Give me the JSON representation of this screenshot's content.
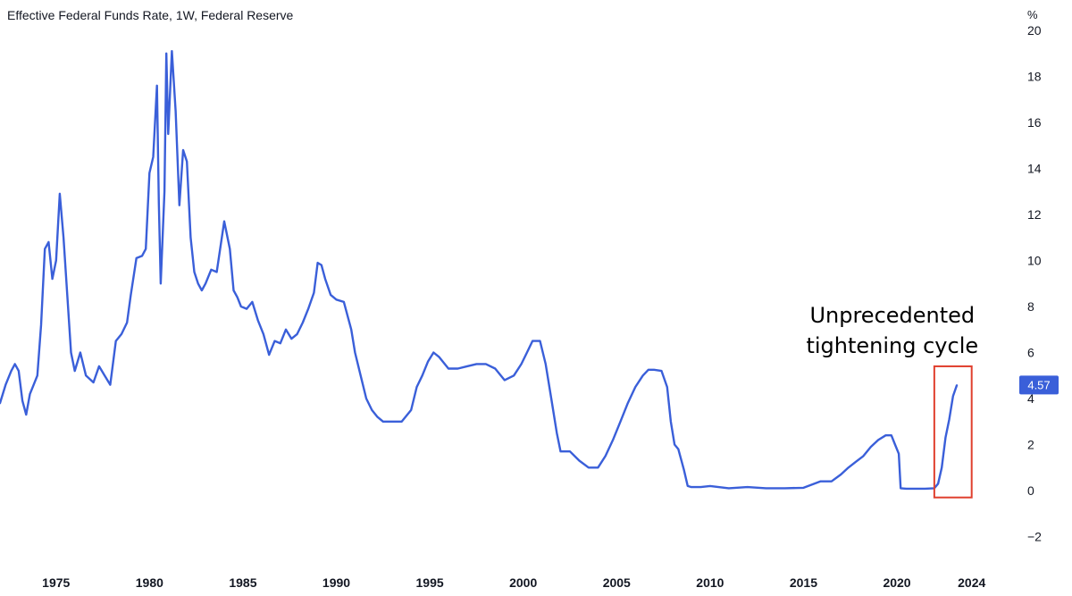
{
  "chart_data": {
    "type": "line",
    "title": "Effective Federal Funds Rate, 1W, Federal Reserve",
    "unit_label": "%",
    "xlim": [
      1972.0,
      2026.5
    ],
    "ylim": [
      -3,
      20
    ],
    "y_ticks": [
      20,
      18,
      16,
      14,
      12,
      10,
      8,
      6,
      4,
      2,
      0,
      -2
    ],
    "x_ticks": [
      {
        "value": 1975,
        "label": "1975"
      },
      {
        "value": 1980,
        "label": "1980"
      },
      {
        "value": 1985,
        "label": "1985"
      },
      {
        "value": 1990,
        "label": "1990"
      },
      {
        "value": 1995,
        "label": "1995"
      },
      {
        "value": 2000,
        "label": "2000"
      },
      {
        "value": 2005,
        "label": "2005"
      },
      {
        "value": 2010,
        "label": "2010"
      },
      {
        "value": 2015,
        "label": "2015"
      },
      {
        "value": 2020,
        "label": "2020"
      },
      {
        "value": 2024,
        "label": "2024"
      }
    ],
    "grid": false,
    "line_color": "#3a5fd9",
    "series": [
      {
        "x": [
          1972.0,
          1972.3,
          1972.6,
          1972.8,
          1973.0,
          1973.2,
          1973.4,
          1973.6,
          1973.8,
          1974.0,
          1974.2,
          1974.4,
          1974.6,
          1974.8,
          1975.0,
          1975.2,
          1975.4,
          1975.6,
          1975.8,
          1976.0,
          1976.3,
          1976.6,
          1977.0,
          1977.3,
          1977.6,
          1977.9,
          1978.2,
          1978.5,
          1978.8,
          1979.0,
          1979.3,
          1979.6,
          1979.8,
          1980.0,
          1980.2,
          1980.4,
          1980.5,
          1980.6,
          1980.8,
          1980.9,
          1981.0,
          1981.2,
          1981.4,
          1981.6,
          1981.8,
          1982.0,
          1982.2,
          1982.4,
          1982.6,
          1982.8,
          1983.0,
          1983.3,
          1983.6,
          1984.0,
          1984.3,
          1984.5,
          1984.7,
          1984.9,
          1985.2,
          1985.5,
          1985.8,
          1986.1,
          1986.4,
          1986.7,
          1987.0,
          1987.3,
          1987.6,
          1987.9,
          1988.2,
          1988.5,
          1988.8,
          1989.0,
          1989.2,
          1989.4,
          1989.7,
          1990.0,
          1990.4,
          1990.8,
          1991.0,
          1991.3,
          1991.6,
          1991.9,
          1992.2,
          1992.5,
          1993.0,
          1993.5,
          1994.0,
          1994.3,
          1994.6,
          1994.9,
          1995.2,
          1995.5,
          1996.0,
          1996.5,
          1997.0,
          1997.5,
          1998.0,
          1998.5,
          1998.8,
          1999.0,
          1999.5,
          1999.9,
          2000.2,
          2000.5,
          2000.9,
          2001.2,
          2001.5,
          2001.8,
          2002.0,
          2002.5,
          2003.0,
          2003.5,
          2004.0,
          2004.4,
          2004.8,
          2005.2,
          2005.6,
          2006.0,
          2006.4,
          2006.7,
          2007.0,
          2007.4,
          2007.7,
          2007.9,
          2008.1,
          2008.3,
          2008.6,
          2008.8,
          2009.0,
          2009.5,
          2010.0,
          2011.0,
          2012.0,
          2013.0,
          2014.0,
          2015.0,
          2015.9,
          2016.5,
          2017.0,
          2017.4,
          2017.8,
          2018.2,
          2018.6,
          2019.0,
          2019.4,
          2019.7,
          2019.9,
          2020.1,
          2020.2,
          2020.5,
          2021.0,
          2021.5,
          2022.0,
          2022.2,
          2022.4,
          2022.6,
          2022.8,
          2023.0,
          2023.2
        ],
        "y": [
          3.8,
          4.6,
          5.2,
          5.5,
          5.2,
          3.9,
          3.3,
          4.2,
          4.6,
          5.0,
          7.2,
          10.5,
          10.8,
          9.2,
          10.0,
          12.9,
          11.0,
          8.5,
          6.0,
          5.2,
          6.0,
          5.0,
          4.7,
          5.4,
          5.0,
          4.6,
          6.5,
          6.8,
          7.3,
          8.5,
          10.1,
          10.2,
          10.5,
          13.8,
          14.5,
          17.6,
          12.5,
          9.0,
          13.0,
          19.0,
          15.5,
          19.1,
          16.5,
          12.4,
          14.8,
          14.3,
          11.0,
          9.5,
          9.0,
          8.7,
          9.0,
          9.6,
          9.5,
          11.7,
          10.5,
          8.7,
          8.4,
          8.0,
          7.9,
          8.2,
          7.4,
          6.8,
          5.9,
          6.5,
          6.4,
          7.0,
          6.6,
          6.8,
          7.3,
          7.9,
          8.6,
          9.9,
          9.8,
          9.2,
          8.5,
          8.3,
          8.2,
          7.0,
          6.0,
          5.0,
          4.0,
          3.5,
          3.2,
          3.0,
          3.0,
          3.0,
          3.5,
          4.5,
          5.0,
          5.6,
          6.0,
          5.8,
          5.3,
          5.3,
          5.4,
          5.5,
          5.5,
          5.3,
          5.0,
          4.8,
          5.0,
          5.5,
          6.0,
          6.5,
          6.5,
          5.5,
          4.0,
          2.5,
          1.7,
          1.7,
          1.3,
          1.0,
          1.0,
          1.5,
          2.2,
          3.0,
          3.8,
          4.5,
          5.0,
          5.25,
          5.25,
          5.2,
          4.5,
          3.0,
          2.0,
          1.8,
          0.9,
          0.2,
          0.15,
          0.15,
          0.2,
          0.1,
          0.15,
          0.1,
          0.1,
          0.12,
          0.4,
          0.4,
          0.7,
          1.0,
          1.25,
          1.5,
          1.9,
          2.2,
          2.4,
          2.4,
          2.0,
          1.6,
          0.1,
          0.08,
          0.08,
          0.08,
          0.1,
          0.3,
          1.0,
          2.3,
          3.1,
          4.1,
          4.57
        ]
      }
    ],
    "last_value": "4.57",
    "annotation": {
      "lines": [
        "Unprecedented",
        "tightening cycle"
      ],
      "box_x_range": [
        2022.0,
        2024.0
      ],
      "box_y_range": [
        -0.3,
        5.4
      ],
      "box_color": "#e0402e"
    }
  }
}
